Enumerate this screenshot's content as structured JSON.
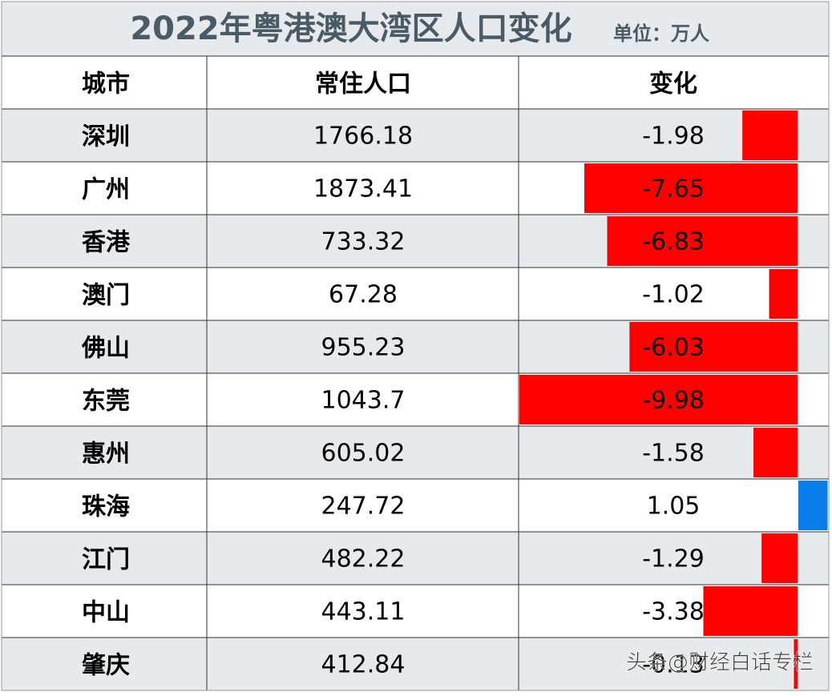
{
  "title": "2022年粤港澳大湾区人口变化",
  "unit": "单位：万人",
  "table": {
    "columns": [
      "城市",
      "常住人口",
      "变化"
    ],
    "rows": [
      [
        "深圳",
        1766.18,
        -1.98
      ],
      [
        "广州",
        1873.41,
        -7.65
      ],
      [
        "香港",
        733.32,
        -6.83
      ],
      [
        "澳门",
        67.28,
        -1.02
      ],
      [
        "佛山",
        955.23,
        -6.03
      ],
      [
        "东莞",
        1043.7,
        -9.98
      ],
      [
        "惠州",
        605.02,
        -1.58
      ],
      [
        "珠海",
        247.72,
        1.05
      ],
      [
        "江门",
        482.22,
        -1.29
      ],
      [
        "中山",
        443.11,
        -3.38
      ],
      [
        "肇庆",
        412.84,
        -0.13
      ]
    ]
  },
  "bar_colors": {
    "negative": "#ff0000",
    "positive": "#0a7ee8"
  },
  "watermark": "头条@财经白话专栏"
}
